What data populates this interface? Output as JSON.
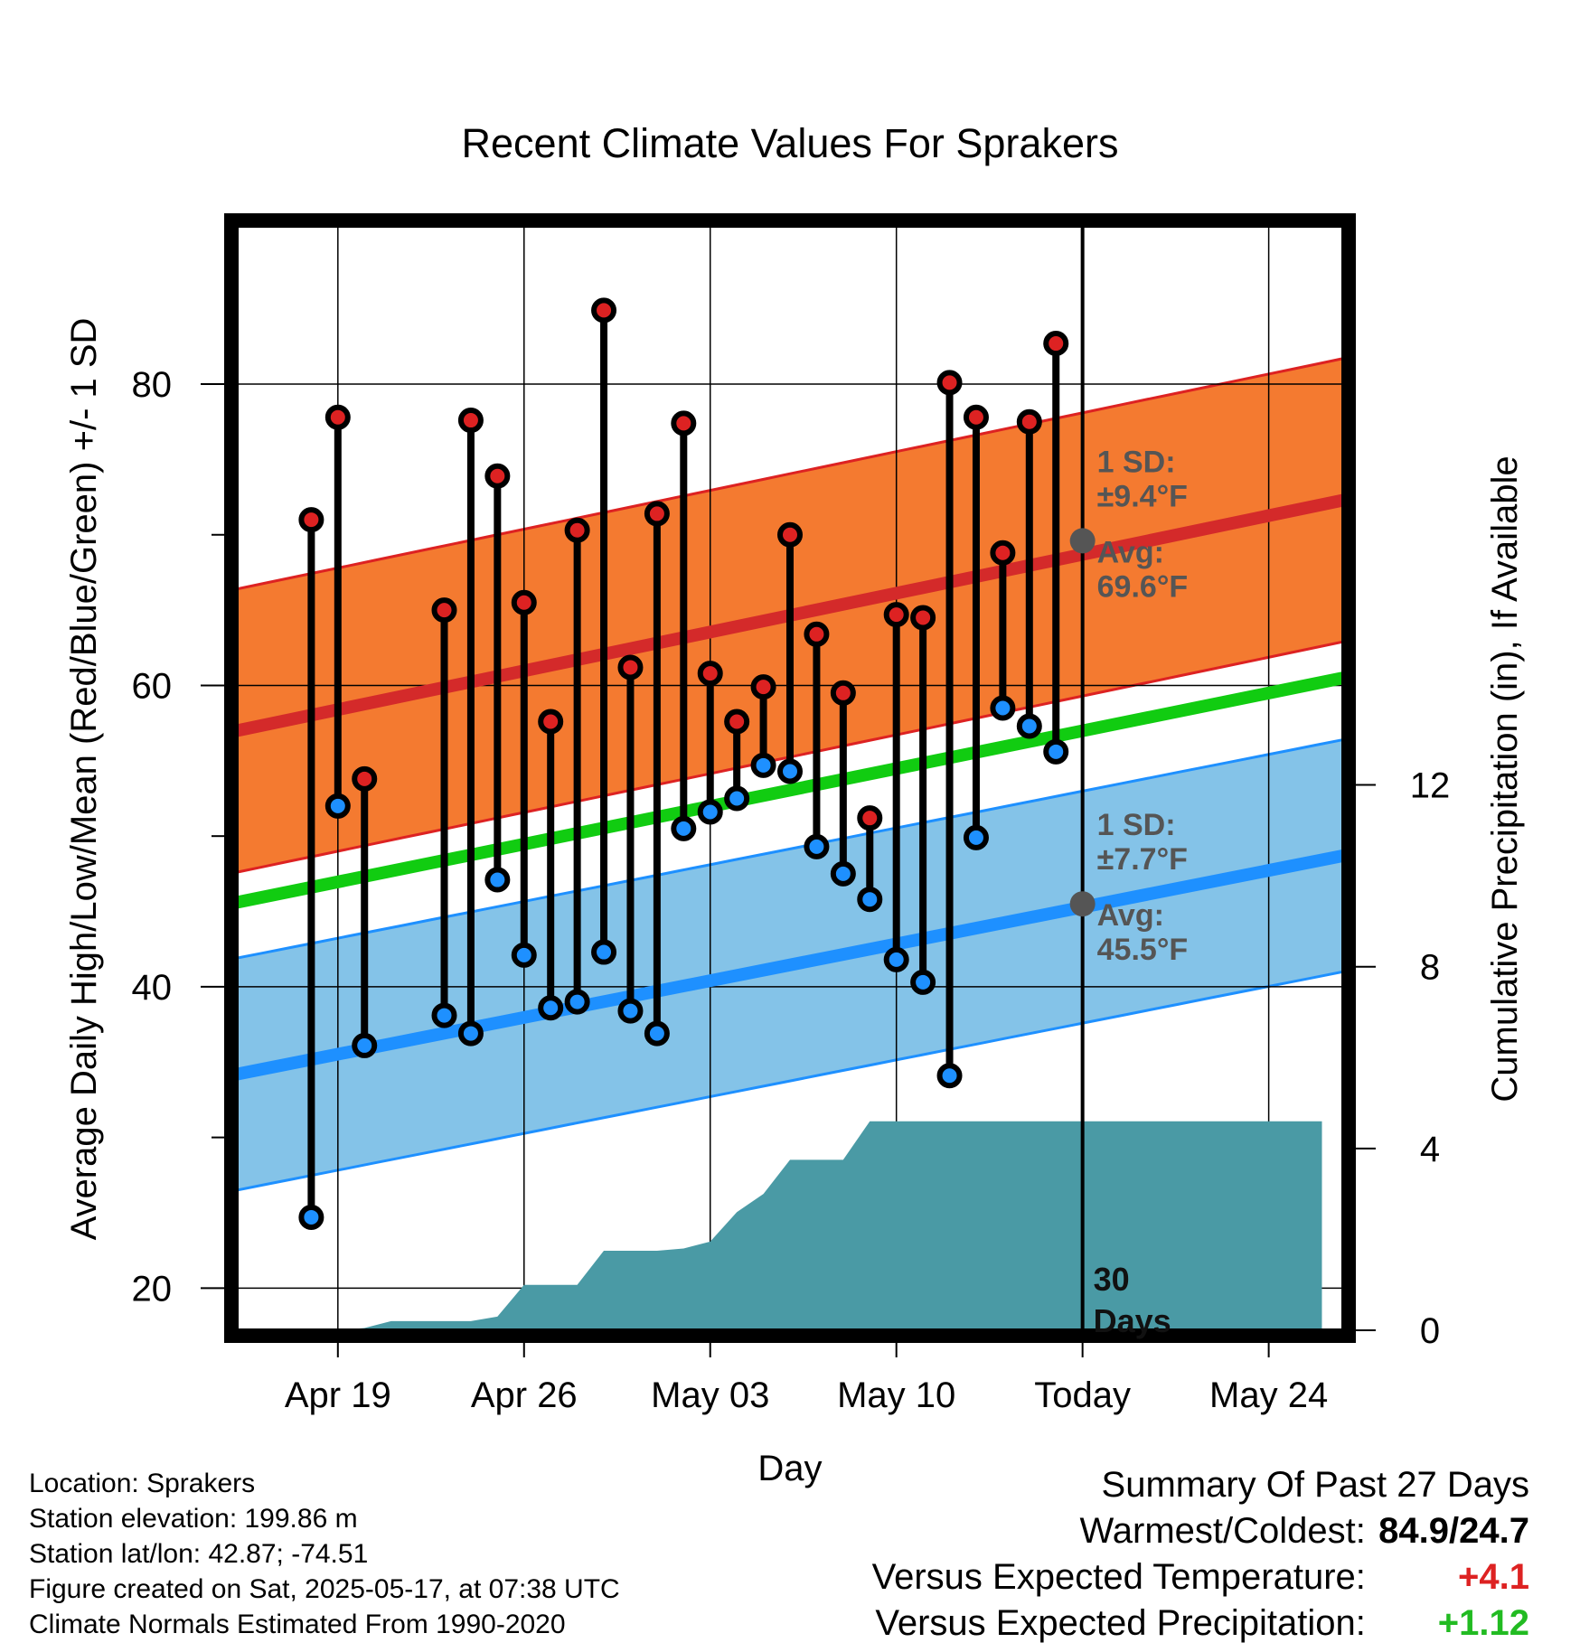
{
  "chart_data": {
    "type": "line",
    "title": "Recent Climate Values For Sprakers",
    "xlabel": "Day",
    "ylabel": "Average Daily High/Low/Mean (Red/Blue/Green) +/- 1 SD",
    "y2label": "Cumulative Precipitation (in), If Available",
    "ylim": [
      17.2,
      90.5
    ],
    "y2lim": [
      0,
      24.3
    ],
    "xlim": [
      -3.8,
      37.8
    ],
    "x_tick_labels": [
      {
        "day": 0,
        "label": "Apr 19"
      },
      {
        "day": 7,
        "label": "Apr 26"
      },
      {
        "day": 14,
        "label": "May 03"
      },
      {
        "day": 21,
        "label": "May 10"
      },
      {
        "day": 28,
        "label": "Today"
      },
      {
        "day": 35,
        "label": "May 24"
      }
    ],
    "y_ticks": [
      20,
      40,
      60,
      80
    ],
    "y_minor_ticks": [
      30,
      50,
      70
    ],
    "y2_ticks": [
      0,
      4,
      8,
      12
    ],
    "today_day": 28,
    "today_label": "30 Days",
    "normals": {
      "high_avg": [
        57.0,
        72.3
      ],
      "high_sd": 9.4,
      "low_avg": [
        34.2,
        48.7
      ],
      "low_sd": 7.7,
      "mean_avg": [
        45.6,
        60.5
      ]
    },
    "annotations": {
      "high": {
        "sd_label": "1 SD:",
        "sd_value": "±9.4°F",
        "avg_label": "Avg:",
        "avg_value": "69.6°F",
        "avg": 69.6
      },
      "low": {
        "sd_label": "1 SD:",
        "sd_value": "±7.7°F",
        "avg_label": "Avg:",
        "avg_value": "45.5°F",
        "avg": 45.5
      }
    },
    "series": [
      {
        "name": "High",
        "color": "#dd2222",
        "x": [
          -1,
          0,
          1,
          4,
          5,
          6,
          7,
          8,
          9,
          10,
          11,
          12,
          13,
          14,
          15,
          16,
          17,
          18,
          19,
          20,
          21,
          22,
          23,
          24,
          25,
          26,
          27
        ],
        "values": [
          71.0,
          77.8,
          53.8,
          65.0,
          77.6,
          73.9,
          65.5,
          57.6,
          70.3,
          84.9,
          61.2,
          71.4,
          77.4,
          60.8,
          57.6,
          59.9,
          70.0,
          63.4,
          59.5,
          51.2,
          64.7,
          64.5,
          80.1,
          77.8,
          68.8,
          77.5,
          82.7
        ]
      },
      {
        "name": "Low",
        "color": "#1e90ff",
        "x": [
          -1,
          0,
          1,
          4,
          5,
          6,
          7,
          8,
          9,
          10,
          11,
          12,
          13,
          14,
          15,
          16,
          17,
          18,
          19,
          20,
          21,
          22,
          23,
          24,
          25,
          26,
          27
        ],
        "values": [
          24.7,
          52.0,
          36.1,
          38.1,
          36.9,
          47.1,
          42.1,
          38.6,
          39.0,
          42.3,
          38.4,
          36.9,
          50.5,
          51.6,
          52.5,
          54.7,
          54.3,
          49.3,
          47.5,
          45.8,
          41.8,
          40.3,
          34.1,
          49.9,
          58.5,
          57.3,
          55.6
        ]
      }
    ],
    "precipitation": {
      "color": "#4a9aa5",
      "x": [
        -1,
        0,
        1,
        2,
        3,
        4,
        5,
        6,
        7,
        8,
        9,
        10,
        11,
        12,
        13,
        14,
        15,
        16,
        17,
        18,
        19,
        20,
        21,
        22,
        23,
        24,
        25,
        26,
        27,
        28,
        37
      ],
      "values": [
        0,
        0,
        0.05,
        0.2,
        0.2,
        0.2,
        0.2,
        0.3,
        1.0,
        1.0,
        1.0,
        1.75,
        1.75,
        1.75,
        1.8,
        1.95,
        2.6,
        3.0,
        3.75,
        3.75,
        3.75,
        4.6,
        4.6,
        4.6,
        4.6,
        4.6,
        4.6,
        4.6,
        4.6,
        4.6,
        4.6
      ]
    }
  },
  "info": {
    "location": "Location: Sprakers",
    "elevation": "Station elevation: 199.86 m",
    "latlon": "Station lat/lon: 42.87; -74.51",
    "created": "Figure created on Sat, 2025-05-17, at 07:38 UTC",
    "normals": "Climate Normals Estimated From 1990-2020"
  },
  "summary": {
    "title": "Summary Of Past 27 Days",
    "warm_cold_label": "Warmest/Coldest:",
    "warm_cold_value": "84.9/24.7",
    "temp_label": "Versus Expected Temperature:",
    "temp_value": "+4.1",
    "temp_color": "#dd2222",
    "precip_label": "Versus Expected Precipitation:",
    "precip_value": "+1.12",
    "precip_color": "#22bb22"
  }
}
